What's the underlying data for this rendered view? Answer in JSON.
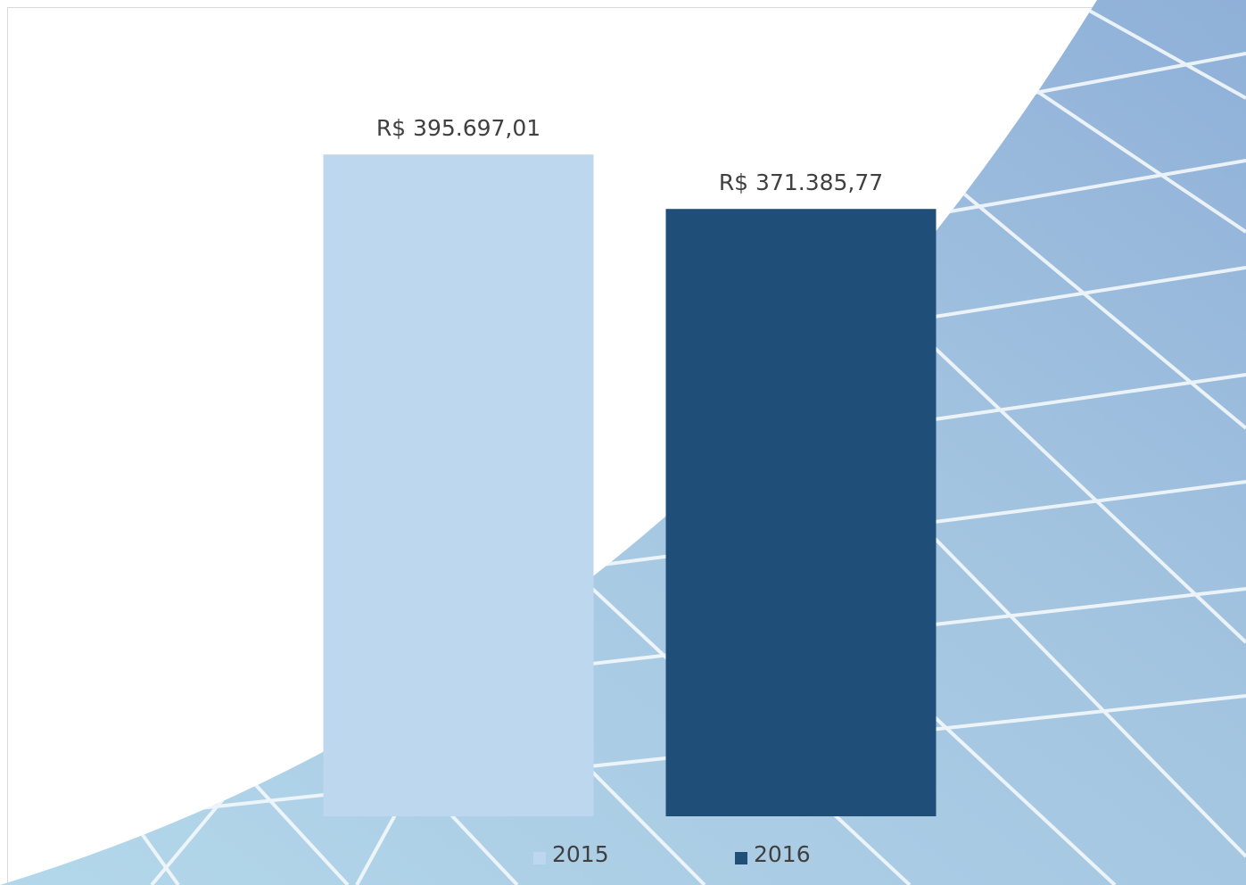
{
  "chart_data": {
    "type": "bar",
    "categories": [
      null
    ],
    "series": [
      {
        "name": "2015",
        "color": "#bdd7ee",
        "values": [
          395697.01
        ],
        "value_labels": [
          "R$ 395.697,01"
        ]
      },
      {
        "name": "2016",
        "color": "#1f4e79",
        "values": [
          371385.77
        ],
        "value_labels": [
          "R$ 371.385,77"
        ]
      }
    ],
    "ylim": [
      100000,
      450000
    ],
    "legend": "bottom"
  }
}
